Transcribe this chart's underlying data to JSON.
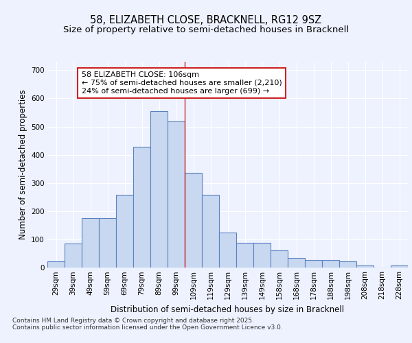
{
  "title_line1": "58, ELIZABETH CLOSE, BRACKNELL, RG12 9SZ",
  "title_line2": "Size of property relative to semi-detached houses in Bracknell",
  "xlabel": "Distribution of semi-detached houses by size in Bracknell",
  "ylabel": "Number of semi-detached properties",
  "categories": [
    "29sqm",
    "39sqm",
    "49sqm",
    "59sqm",
    "69sqm",
    "79sqm",
    "89sqm",
    "99sqm",
    "109sqm",
    "119sqm",
    "129sqm",
    "139sqm",
    "149sqm",
    "158sqm",
    "168sqm",
    "178sqm",
    "188sqm",
    "198sqm",
    "208sqm",
    "218sqm",
    "228sqm"
  ],
  "values": [
    22,
    85,
    175,
    175,
    257,
    428,
    555,
    518,
    335,
    257,
    125,
    88,
    88,
    62,
    33,
    27,
    27,
    22,
    8,
    0,
    8
  ],
  "bar_color": "#c8d8f0",
  "bar_edge_color": "#5b82c0",
  "vline_color": "#cc2222",
  "annotation_text": "58 ELIZABETH CLOSE: 106sqm\n← 75% of semi-detached houses are smaller (2,210)\n24% of semi-detached houses are larger (699) →",
  "annotation_box_facecolor": "#ffffff",
  "annotation_box_edgecolor": "#cc2222",
  "ylim": [
    0,
    730
  ],
  "yticks": [
    0,
    100,
    200,
    300,
    400,
    500,
    600,
    700
  ],
  "background_color": "#eef2ff",
  "grid_color": "#ffffff",
  "footnote": "Contains HM Land Registry data © Crown copyright and database right 2025.\nContains public sector information licensed under the Open Government Licence v3.0.",
  "title_fontsize": 10.5,
  "subtitle_fontsize": 9.5,
  "axis_label_fontsize": 8.5,
  "tick_fontsize": 7.5,
  "annotation_fontsize": 8,
  "footnote_fontsize": 6.5
}
